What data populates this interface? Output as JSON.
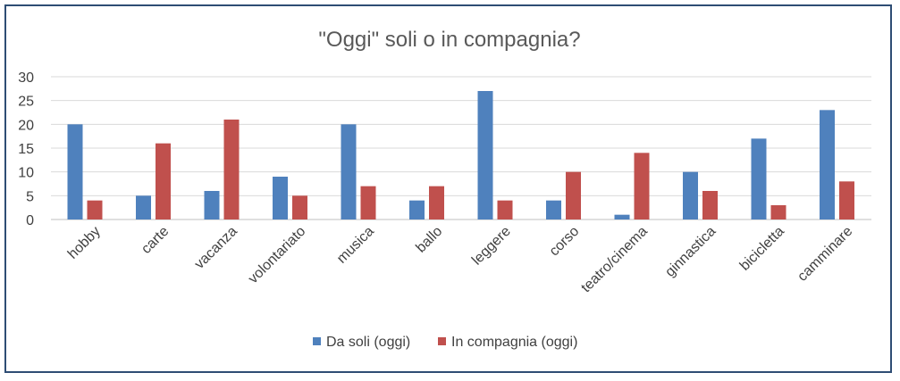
{
  "chart_data": {
    "type": "bar",
    "title": "\"Oggi\" soli o in compagnia?",
    "categories": [
      "hobby",
      "carte",
      "vacanza",
      "volontariato",
      "musica",
      "ballo",
      "leggere",
      "corso",
      "teatro/cinema",
      "ginnastica",
      "bicicletta",
      "camminare"
    ],
    "series": [
      {
        "name": "Da soli (oggi)",
        "color": "#4f81bd",
        "values": [
          20,
          5,
          6,
          9,
          20,
          4,
          27,
          4,
          1,
          10,
          17,
          23
        ]
      },
      {
        "name": "In compagnia (oggi)",
        "color": "#c0504d",
        "values": [
          4,
          16,
          21,
          5,
          7,
          7,
          4,
          10,
          14,
          6,
          3,
          8
        ]
      }
    ],
    "yticks": [
      "0",
      "5",
      "10",
      "15",
      "20",
      "25",
      "30"
    ],
    "ylim": [
      0,
      30
    ],
    "grid": true,
    "legend_position": "bottom"
  }
}
